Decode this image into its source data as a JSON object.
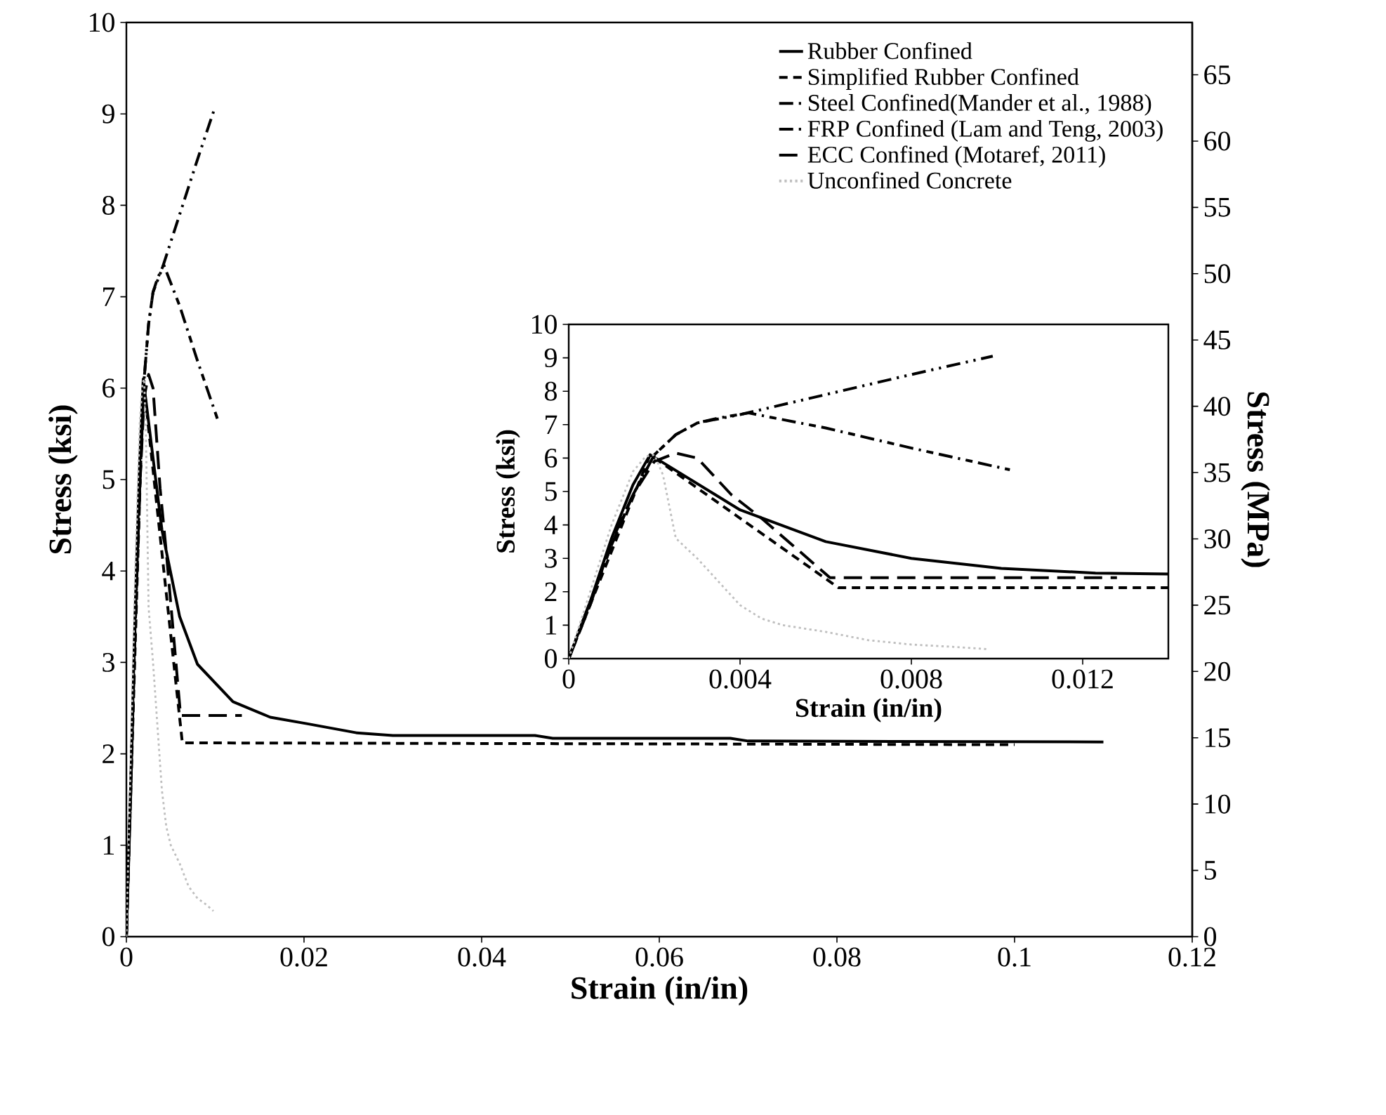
{
  "chart_data": [
    {
      "type": "line",
      "xlabel": "Strain  (in/in)",
      "ylabel": "Stress  (ksi)",
      "y2label": "Stress (MPa)",
      "xlim": [
        0,
        0.12
      ],
      "xticks": [
        0,
        0.02,
        0.04,
        0.06,
        0.08,
        0.1,
        0.12
      ],
      "ylim": [
        0,
        10
      ],
      "yticks": [
        0,
        1,
        2,
        3,
        4,
        5,
        6,
        7,
        8,
        9,
        10
      ],
      "y2lim": [
        0,
        68.95
      ],
      "y2ticks": [
        0,
        5,
        10,
        15,
        20,
        25,
        30,
        35,
        40,
        45,
        50,
        55,
        60,
        65
      ],
      "legend": "top right",
      "series": [
        {
          "name": "Rubber Confined",
          "color": "#000000",
          "line_style": "solid",
          "x": [
            0,
            0.0005,
            0.001,
            0.0015,
            0.0019,
            0.004,
            0.006,
            0.008,
            0.012,
            0.0162,
            0.0203,
            0.0259,
            0.03,
            0.046,
            0.048,
            0.068,
            0.07,
            0.11
          ],
          "values": [
            0,
            1.7,
            3.6,
            5.2,
            6.1,
            4.45,
            3.5,
            2.98,
            2.57,
            2.4,
            2.33,
            2.23,
            2.2,
            2.2,
            2.17,
            2.17,
            2.14,
            2.13
          ]
        },
        {
          "name": "Simplified Rubber Confined",
          "color": "#000000",
          "line_style": "dashed",
          "x": [
            0,
            0.0019,
            0.0063,
            0.1
          ],
          "values": [
            0,
            6.1,
            2.12,
            2.1
          ]
        },
        {
          "name": "Steel Confined(Mander et al., 1988)",
          "color": "#000000",
          "line_style": "dashdot",
          "x": [
            0,
            0.0005,
            0.001,
            0.0015,
            0.002,
            0.0025,
            0.003,
            0.0035,
            0.0042,
            0.006,
            0.008,
            0.0103
          ],
          "values": [
            0,
            1.7,
            3.4,
            4.9,
            6.1,
            6.7,
            7.05,
            7.2,
            7.35,
            6.9,
            6.3,
            5.65
          ]
        },
        {
          "name": "FRP Confined (Lam and Teng, 2003)",
          "color": "#000000",
          "line_style": "dashdotdot",
          "x": [
            0,
            0.0005,
            0.001,
            0.0015,
            0.002,
            0.0025,
            0.003,
            0.004,
            0.006,
            0.008,
            0.0099
          ],
          "values": [
            0,
            1.7,
            3.4,
            4.9,
            6.1,
            6.7,
            7.05,
            7.3,
            7.9,
            8.5,
            9.05
          ]
        },
        {
          "name": "ECC Confined (Motaref, 2011)",
          "color": "#000000",
          "line_style": "longdash",
          "x": [
            0,
            0.0005,
            0.001,
            0.0015,
            0.002,
            0.0025,
            0.003,
            0.0038,
            0.0045,
            0.0061,
            0.013
          ],
          "values": [
            0,
            1.6,
            3.5,
            4.9,
            5.9,
            6.15,
            6.0,
            4.9,
            4.2,
            2.42,
            2.42
          ]
        },
        {
          "name": "Unconfined Concrete",
          "color": "#bfbfbf",
          "line_style": "dotted",
          "x": [
            0,
            0.0005,
            0.001,
            0.0015,
            0.0018,
            0.002,
            0.0022,
            0.0025,
            0.003,
            0.0035,
            0.004,
            0.0045,
            0.005,
            0.006,
            0.007,
            0.008,
            0.009,
            0.0098
          ],
          "values": [
            0,
            2.0,
            4.0,
            5.6,
            6.05,
            6.1,
            5.5,
            3.6,
            3.0,
            2.3,
            1.6,
            1.2,
            1.0,
            0.8,
            0.55,
            0.42,
            0.35,
            0.28
          ]
        }
      ]
    },
    {
      "type": "line",
      "xlabel": "Strain  (in/in)",
      "ylabel": "Stress  (ksi)",
      "xlim": [
        0,
        0.014
      ],
      "xticks": [
        0,
        0.004,
        0.008,
        0.012
      ],
      "ylim": [
        0,
        10
      ],
      "yticks": [
        0,
        1,
        2,
        3,
        4,
        5,
        6,
        7,
        8,
        9,
        10
      ],
      "series": [
        {
          "color": "#000000",
          "line_style": "solid",
          "x": [
            0,
            0.0005,
            0.001,
            0.0015,
            0.0019,
            0.004,
            0.006,
            0.008,
            0.0101,
            0.0123,
            0.014
          ],
          "values": [
            0,
            1.7,
            3.6,
            5.2,
            6.1,
            4.45,
            3.5,
            3.0,
            2.7,
            2.56,
            2.53
          ]
        },
        {
          "color": "#000000",
          "line_style": "dashed",
          "x": [
            0,
            0.0019,
            0.0063,
            0.014
          ],
          "values": [
            0,
            6.1,
            2.12,
            2.12
          ]
        },
        {
          "color": "#000000",
          "line_style": "dashdot",
          "x": [
            0,
            0.0005,
            0.001,
            0.0015,
            0.002,
            0.0025,
            0.003,
            0.0035,
            0.0042,
            0.006,
            0.008,
            0.0103
          ],
          "values": [
            0,
            1.7,
            3.4,
            4.9,
            6.1,
            6.7,
            7.05,
            7.2,
            7.35,
            6.9,
            6.3,
            5.65
          ]
        },
        {
          "color": "#000000",
          "line_style": "dashdotdot",
          "x": [
            0,
            0.0005,
            0.001,
            0.0015,
            0.002,
            0.0025,
            0.003,
            0.004,
            0.006,
            0.008,
            0.0099
          ],
          "values": [
            0,
            1.7,
            3.4,
            4.9,
            6.1,
            6.7,
            7.05,
            7.3,
            7.9,
            8.5,
            9.05
          ]
        },
        {
          "color": "#000000",
          "line_style": "longdash",
          "x": [
            0,
            0.0005,
            0.001,
            0.0015,
            0.002,
            0.0025,
            0.003,
            0.0038,
            0.0045,
            0.0061,
            0.0128
          ],
          "values": [
            0,
            1.6,
            3.5,
            4.9,
            5.9,
            6.15,
            6.0,
            4.9,
            4.2,
            2.42,
            2.42
          ]
        },
        {
          "color": "#bfbfbf",
          "line_style": "dotted",
          "x": [
            0,
            0.0005,
            0.001,
            0.0015,
            0.0018,
            0.002,
            0.0022,
            0.0025,
            0.003,
            0.0035,
            0.004,
            0.0045,
            0.005,
            0.006,
            0.007,
            0.008,
            0.009,
            0.0098
          ],
          "values": [
            0,
            2.0,
            4.0,
            5.6,
            6.05,
            6.1,
            5.5,
            3.6,
            3.0,
            2.3,
            1.6,
            1.2,
            1.0,
            0.8,
            0.55,
            0.42,
            0.35,
            0.28
          ]
        }
      ]
    }
  ]
}
